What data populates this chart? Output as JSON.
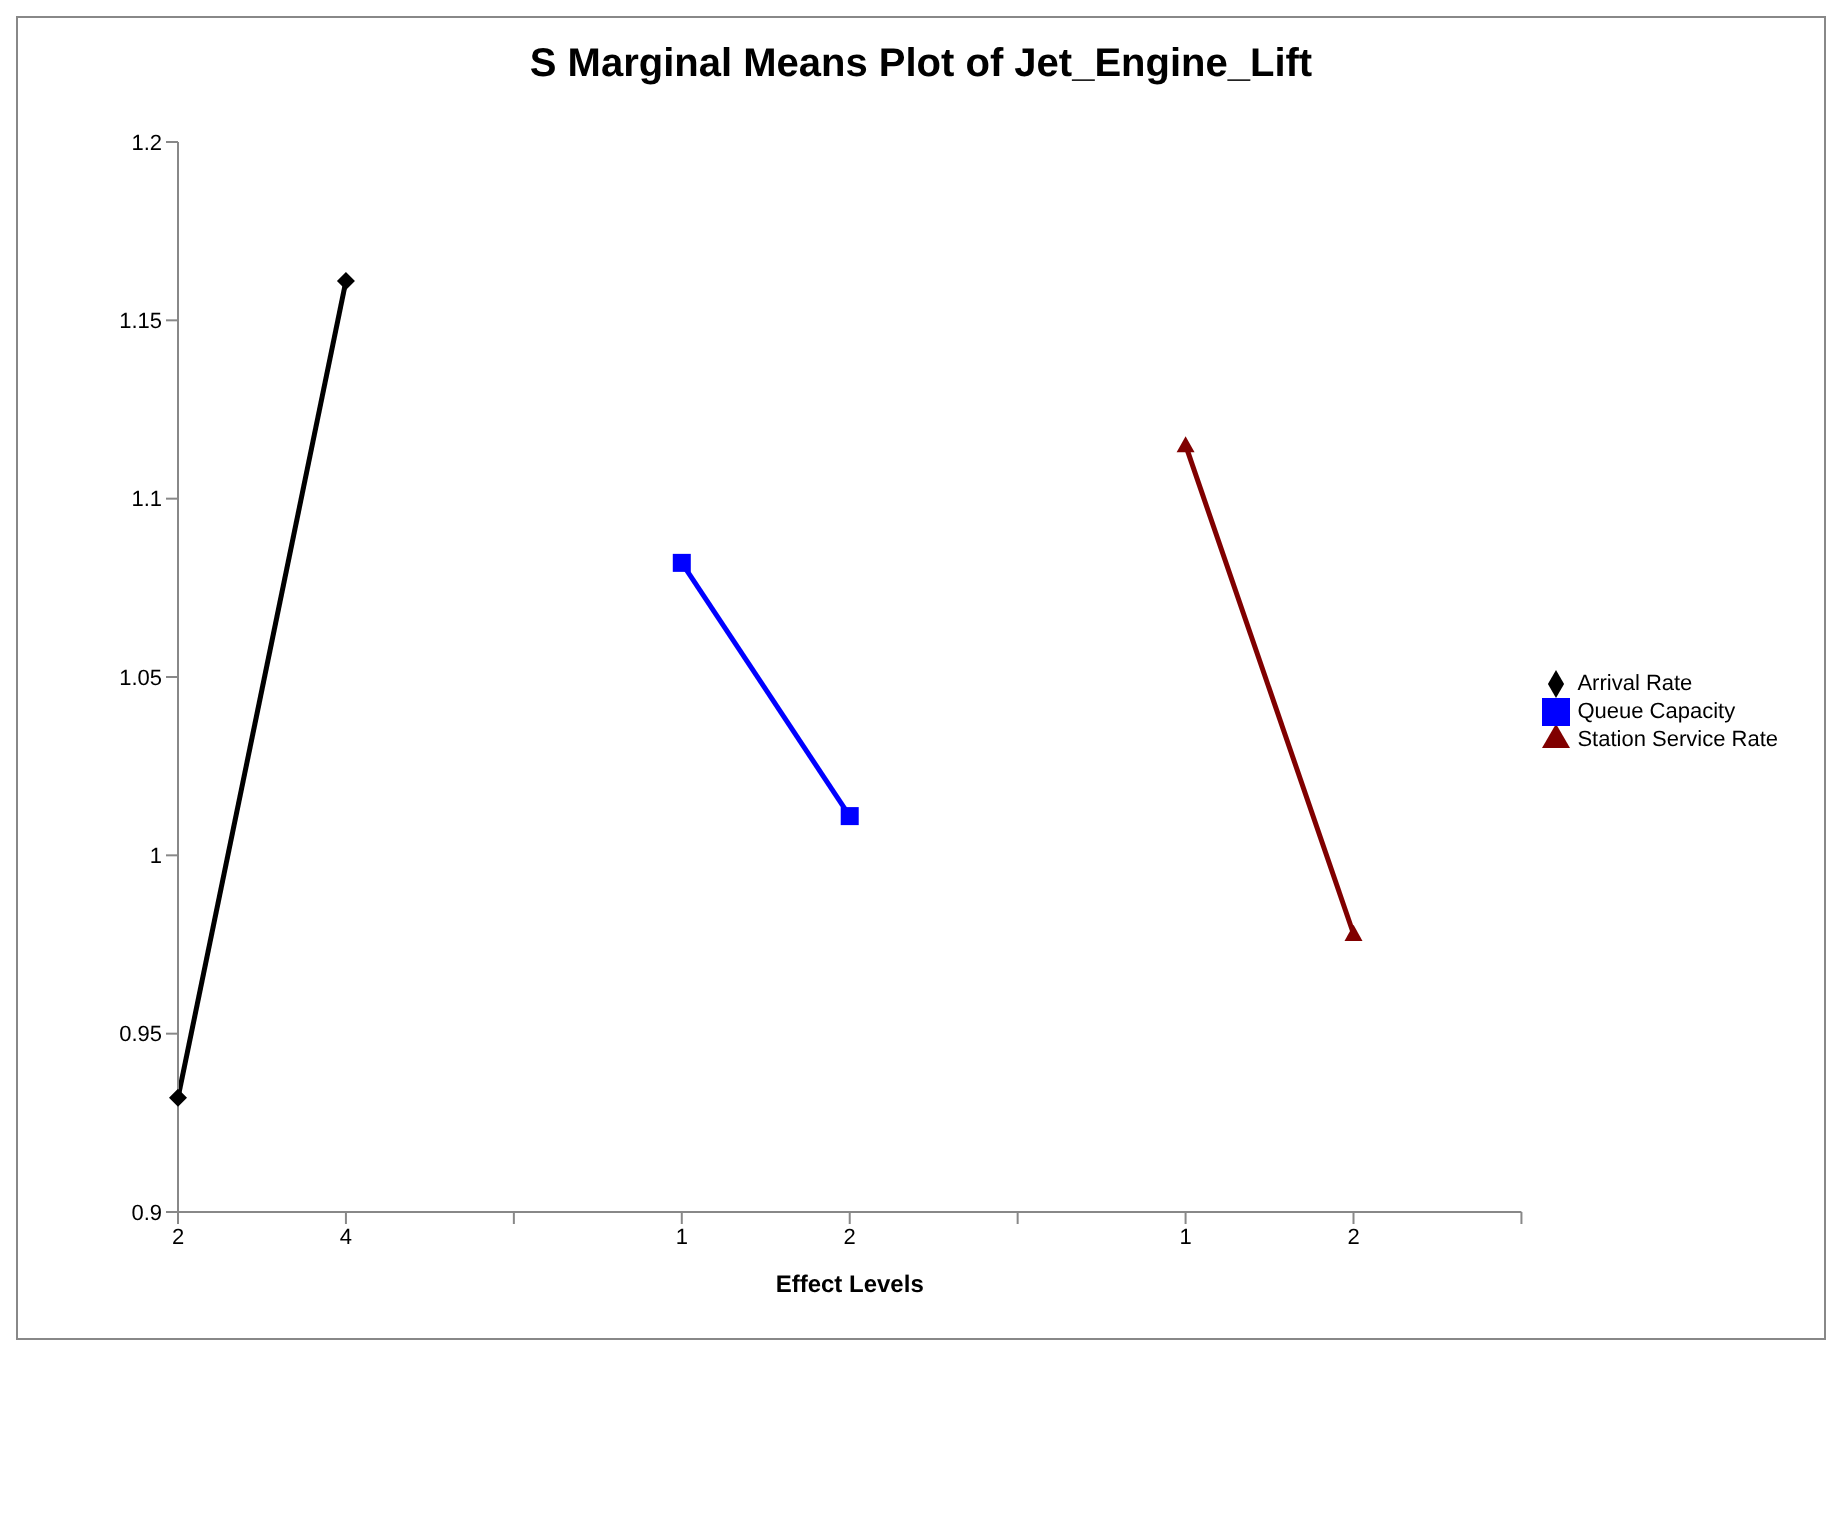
{
  "chart_data": {
    "type": "line",
    "title": "S Marginal Means Plot of Jet_Engine_Lift",
    "xlabel": "Effect Levels",
    "categories": [
      "2",
      "4",
      null,
      "1",
      "2",
      null,
      "1",
      "2",
      null
    ],
    "series": [
      {
        "name": "Arrival Rate",
        "color": "#000000",
        "marker": "diamond",
        "values": [
          0.932,
          1.161,
          null,
          null,
          null,
          null,
          null,
          null,
          null
        ]
      },
      {
        "name": "Queue Capacity",
        "color": "#0000ff",
        "marker": "square",
        "values": [
          null,
          null,
          null,
          1.082,
          1.011,
          null,
          null,
          null,
          null
        ]
      },
      {
        "name": "Station Service Rate",
        "color": "#800000",
        "marker": "triangle",
        "values": [
          null,
          null,
          null,
          null,
          null,
          null,
          1.115,
          0.978,
          null
        ]
      }
    ],
    "ylim": [
      0.9,
      1.2
    ],
    "yticks": [
      0.9,
      0.95,
      1,
      1.05,
      1.1,
      1.15,
      1.2
    ],
    "grid": false,
    "legend": "right",
    "line_style": "solid"
  }
}
